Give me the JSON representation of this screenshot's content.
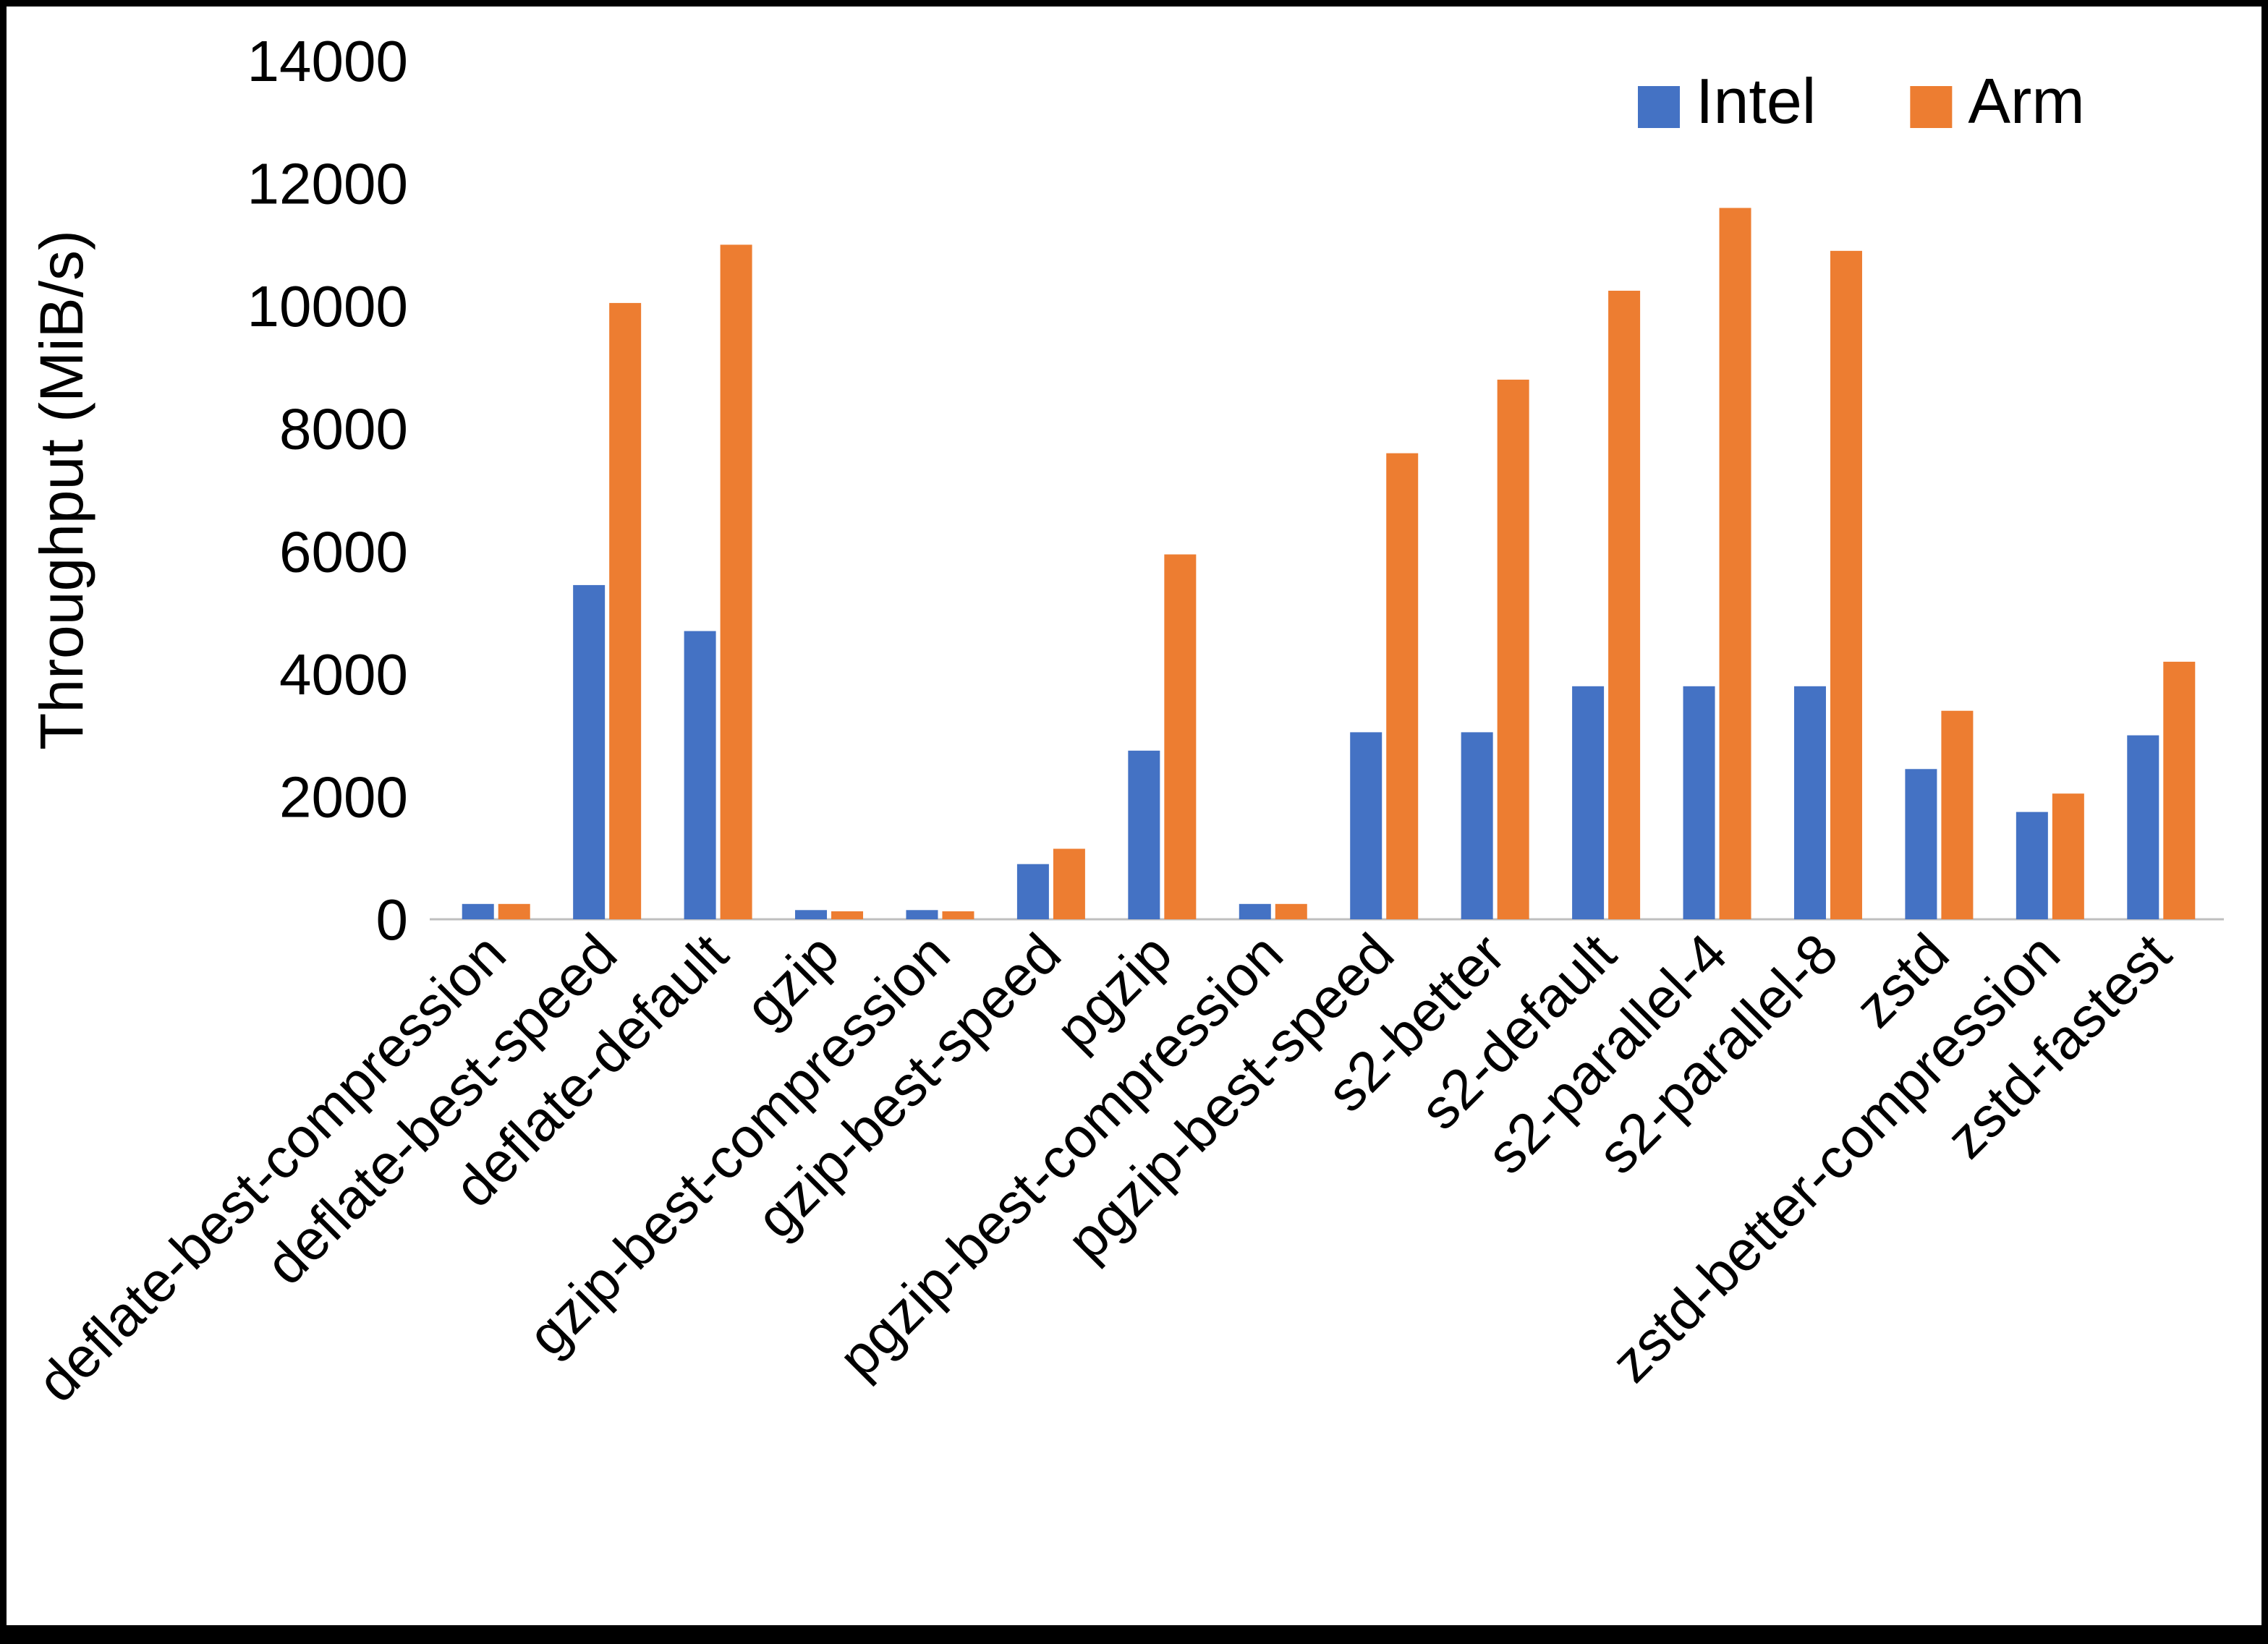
{
  "chart_data": {
    "type": "bar",
    "title": "",
    "xlabel": "",
    "ylabel": "Throughput (MiB/s)",
    "ylim": [
      0,
      14000
    ],
    "ytick_step": 2000,
    "grid": false,
    "legend_position": "top-right",
    "categories": [
      "deflate-best-compression",
      "deflate-best-speed",
      "deflate-default",
      "gzip",
      "gzip-best-compression",
      "gzip-best-speed",
      "pgzip",
      "pgzip-best-compression",
      "pgzip-best-speed",
      "s2-better",
      "s2-default",
      "s2-parallel-4",
      "s2-parallel-8",
      "zstd",
      "zstd-better-compression",
      "zstd-fastest"
    ],
    "series": [
      {
        "name": "Intel",
        "color": "#4472C4",
        "values": [
          250,
          5450,
          4700,
          150,
          150,
          900,
          2750,
          250,
          3050,
          3050,
          3800,
          3800,
          3800,
          2450,
          1750,
          3000
        ]
      },
      {
        "name": "Arm",
        "color": "#ED7D31",
        "values": [
          250,
          10050,
          11000,
          130,
          130,
          1150,
          5950,
          250,
          7600,
          8800,
          10250,
          11600,
          10900,
          3400,
          2050,
          4200
        ]
      }
    ]
  }
}
